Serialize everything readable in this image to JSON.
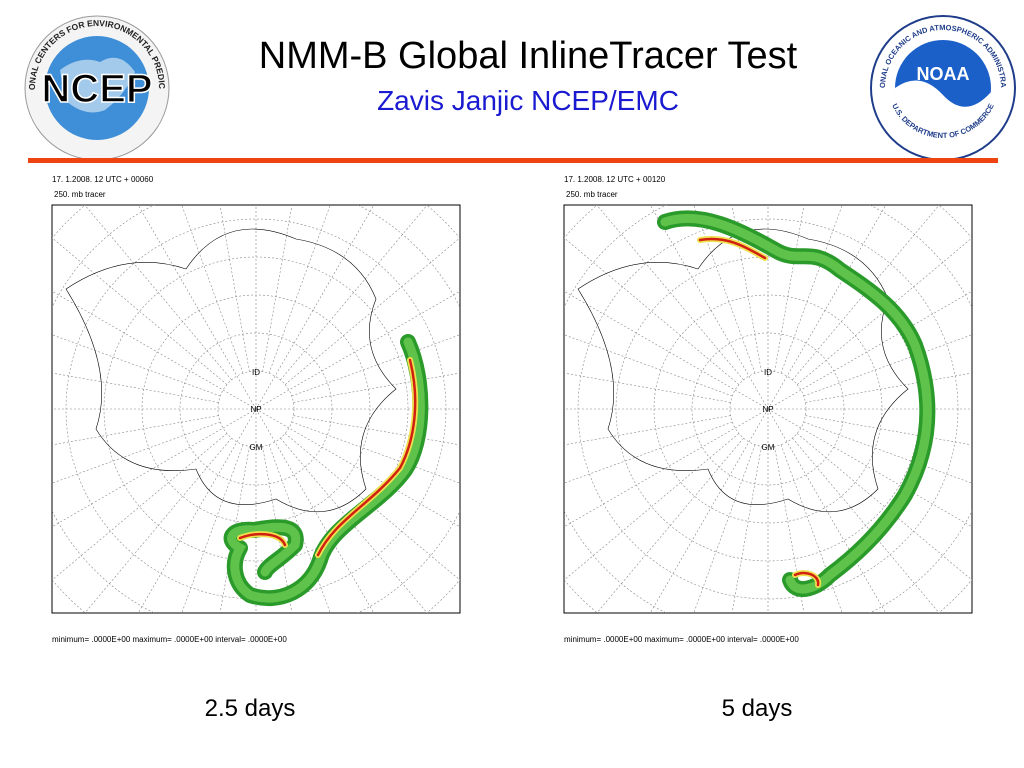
{
  "header": {
    "title": "NMM-B Global InlineTracer Test",
    "subtitle": "Zavis Janjic NCEP/EMC",
    "left_logo": {
      "text": "NCEP",
      "ring": "NATIONAL CENTERS FOR ENVIRONMENTAL PREDICTION"
    },
    "right_logo": {
      "text": "NOAA",
      "ring_top": "NATIONAL OCEANIC AND ATMOSPHERIC ADMINISTRATION",
      "ring_bottom": "U.S. DEPARTMENT OF COMMERCE"
    }
  },
  "panels": [
    {
      "date": "17. 1.2008.   12 UTC + 00060",
      "level": "250. mb tracer",
      "labels": [
        "ID",
        "NP",
        "GM"
      ],
      "footer": "minimum=  .0000E+00 maximum=  .0000E+00 interval=  .0000E+00",
      "caption": "2.5 days"
    },
    {
      "date": "17. 1.2008.   12 UTC + 00120",
      "level": "250. mb tracer",
      "labels": [
        "ID",
        "NP",
        "GM"
      ],
      "footer": "minimum=  .0000E+00 maximum=  .0000E+00 interval=  .0000E+00",
      "caption": "5 days"
    }
  ]
}
